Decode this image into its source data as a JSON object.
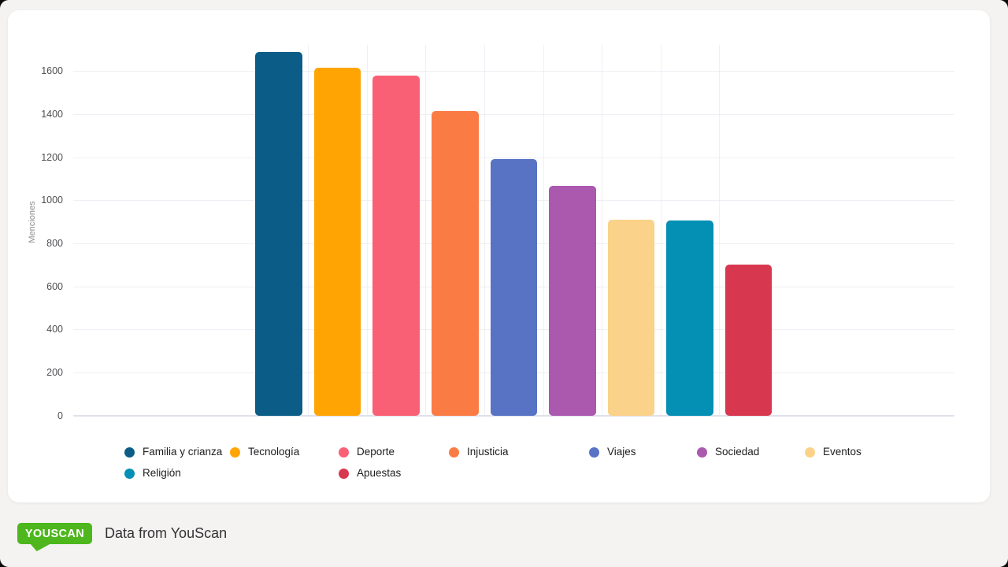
{
  "page": {
    "background": "#F4F3F1",
    "card_background": "#FFFFFF"
  },
  "chart_data": {
    "type": "bar",
    "title": "",
    "xlabel": "",
    "ylabel": "Menciones",
    "categories": [
      "Familia y crianza",
      "Tecnología",
      "Deporte",
      "Injusticia",
      "Viajes",
      "Sociedad",
      "Eventos",
      "Religión",
      "Apuestas"
    ],
    "values": [
      1690,
      1615,
      1580,
      1415,
      1190,
      1068,
      910,
      905,
      700
    ],
    "colors": [
      "#0B5D87",
      "#FFA403",
      "#F96075",
      "#FB7B45",
      "#5872C4",
      "#AA59AE",
      "#FBD289",
      "#048FB4",
      "#D8384F"
    ],
    "yticks": [
      0,
      200,
      400,
      600,
      800,
      1000,
      1200,
      1400,
      1600
    ],
    "ylim": [
      0,
      1720
    ],
    "grid": true,
    "legend_position": "bottom"
  },
  "footer": {
    "logo_text": "YOUSCAN",
    "logo_color": "#4DB71D",
    "caption": "Data from YouScan"
  }
}
